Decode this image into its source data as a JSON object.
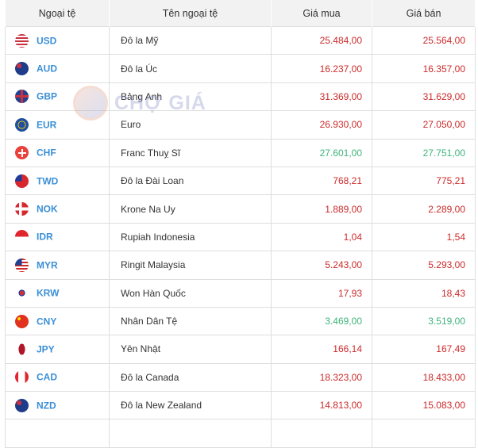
{
  "headers": [
    "Ngoại tệ",
    "Tên ngoại tệ",
    "Giá mua",
    "Giá bán"
  ],
  "watermark": "CHỢ GIÁ",
  "colors": {
    "up": "#cc2a2a",
    "down": "#3db37a",
    "code": "#3a8fd6"
  },
  "rows": [
    {
      "code": "USD",
      "name": "Đô la Mỹ",
      "buy": "25.484,00",
      "sell": "25.564,00",
      "trend": "red",
      "flag": "us-flag"
    },
    {
      "code": "AUD",
      "name": "Đô la Úc",
      "buy": "16.237,00",
      "sell": "16.357,00",
      "trend": "red",
      "flag": "au-flag"
    },
    {
      "code": "GBP",
      "name": "Bảng Anh",
      "buy": "31.369,00",
      "sell": "31.629,00",
      "trend": "red",
      "flag": "gb-flag"
    },
    {
      "code": "EUR",
      "name": "Euro",
      "buy": "26.930,00",
      "sell": "27.050,00",
      "trend": "red",
      "flag": "eu-flag"
    },
    {
      "code": "CHF",
      "name": "Franc Thuỵ Sĩ",
      "buy": "27.601,00",
      "sell": "27.751,00",
      "trend": "green",
      "flag": "ch-flag"
    },
    {
      "code": "TWD",
      "name": "Đô la Đài Loan",
      "buy": "768,21",
      "sell": "775,21",
      "trend": "red",
      "flag": "tw-flag"
    },
    {
      "code": "NOK",
      "name": "Krone Na Uy",
      "buy": "1.889,00",
      "sell": "2.289,00",
      "trend": "red",
      "flag": "no-flag"
    },
    {
      "code": "IDR",
      "name": "Rupiah Indonesia",
      "buy": "1,04",
      "sell": "1,54",
      "trend": "red",
      "flag": "id-flag"
    },
    {
      "code": "MYR",
      "name": "Ringit Malaysia",
      "buy": "5.243,00",
      "sell": "5.293,00",
      "trend": "red",
      "flag": "my-flag"
    },
    {
      "code": "KRW",
      "name": "Won Hàn Quốc",
      "buy": "17,93",
      "sell": "18,43",
      "trend": "red",
      "flag": "kr-flag"
    },
    {
      "code": "CNY",
      "name": "Nhân Dân Tệ",
      "buy": "3.469,00",
      "sell": "3.519,00",
      "trend": "green",
      "flag": "cn-flag"
    },
    {
      "code": "JPY",
      "name": "Yên Nhật",
      "buy": "166,14",
      "sell": "167,49",
      "trend": "red",
      "flag": "jp-flag"
    },
    {
      "code": "CAD",
      "name": "Đô la Canada",
      "buy": "18.323,00",
      "sell": "18.433,00",
      "trend": "red",
      "flag": "ca-flag"
    },
    {
      "code": "NZD",
      "name": "Đô la New Zealand",
      "buy": "14.813,00",
      "sell": "15.083,00",
      "trend": "red",
      "flag": "nz-flag"
    }
  ]
}
